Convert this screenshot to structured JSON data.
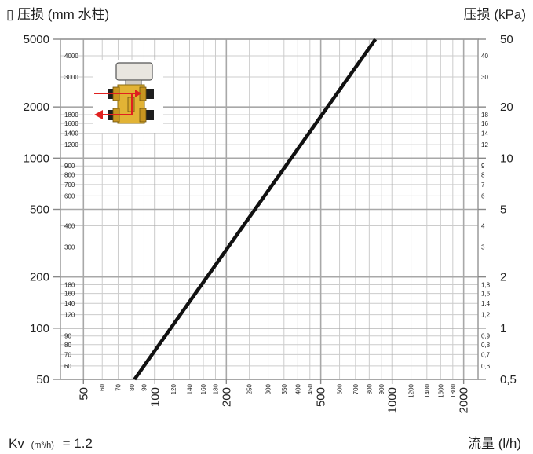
{
  "chart_data": {
    "type": "line",
    "title": "",
    "ylabel_left": "▯ 压损 (mm 水柱)",
    "ylabel_right": "压损 (kPa)",
    "xlabel": "流量 (l/h)",
    "kv_note": {
      "prefix": "Kv",
      "unit": "(m³/h)",
      "value": "= 1.2"
    },
    "x_scale": "log",
    "y_scale": "log",
    "xlim": [
      40,
      2300
    ],
    "ylim": [
      50,
      5000
    ],
    "grid": true,
    "x_major_ticks": [
      "50",
      "100",
      "200",
      "500",
      "1000",
      "2000"
    ],
    "x_minor_ticks": [
      "60",
      "70",
      "80",
      "90",
      "120",
      "140",
      "160",
      "180",
      "250",
      "300",
      "350",
      "400",
      "450",
      "600",
      "700",
      "800",
      "900",
      "1200",
      "1400",
      "1600",
      "1800"
    ],
    "y_left_major_ticks": [
      "5000",
      "2000",
      "1000",
      "500",
      "200",
      "100",
      "50"
    ],
    "y_left_minor_ticks": [
      "4000",
      "3000",
      "1800",
      "1600",
      "1400",
      "1200",
      "900",
      "800",
      "700",
      "600",
      "400",
      "300",
      "180",
      "160",
      "140",
      "120",
      "90",
      "80",
      "70",
      "60"
    ],
    "y_right_major_ticks": [
      "50",
      "20",
      "10",
      "5",
      "2",
      "1",
      "0,5"
    ],
    "y_right_minor_ticks": [
      "40",
      "30",
      "16",
      "18",
      "14",
      "12",
      "9",
      "8",
      "7",
      "6",
      "4",
      "3",
      "1,8",
      "1,6",
      "1,4",
      "1,2",
      "0,9",
      "0,8",
      "0,7",
      "0,6"
    ],
    "series": [
      {
        "color": "#111111",
        "x": [
          82,
          850
        ],
        "y": [
          50,
          5000
        ]
      }
    ],
    "inset": {
      "description": "valve-illustration",
      "arrow_color": "#e0201f"
    }
  }
}
